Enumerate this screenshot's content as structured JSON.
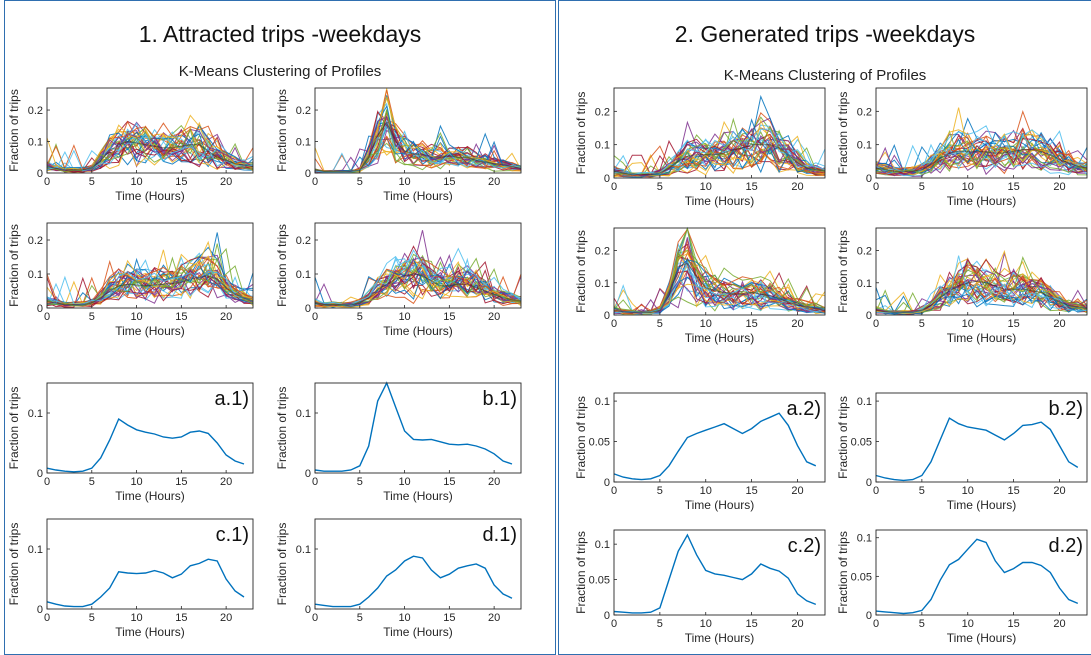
{
  "panels": [
    {
      "title": "1. Attracted trips -weekdays",
      "subtitle": "K-Means Clustering of Profiles"
    },
    {
      "title": "2. Generated trips -weekdays",
      "subtitle": "K-Means Clustering of Profiles"
    }
  ],
  "chart_data": [
    {
      "id": "p1-cluster-1",
      "type": "line",
      "xlabel": "Time (Hours)",
      "ylabel": "Fraction of trips",
      "xlim": [
        0,
        23
      ],
      "ylim": [
        0,
        0.27
      ],
      "xticks": [
        0,
        5,
        10,
        15,
        20
      ],
      "yticks": [
        0,
        0.1,
        0.2
      ],
      "many_profiles": true,
      "series": [
        {
          "values": [
            0.02,
            0.015,
            0.01,
            0.01,
            0.01,
            0.015,
            0.04,
            0.07,
            0.09,
            0.1,
            0.095,
            0.09,
            0.085,
            0.08,
            0.08,
            0.085,
            0.09,
            0.09,
            0.07,
            0.05,
            0.04,
            0.03,
            0.025,
            0.02
          ]
        }
      ]
    },
    {
      "id": "p1-cluster-2",
      "type": "line",
      "xlabel": "Time (Hours)",
      "ylabel": "Fraction of trips",
      "xlim": [
        0,
        23
      ],
      "ylim": [
        0,
        0.27
      ],
      "xticks": [
        0,
        5,
        10,
        15,
        20
      ],
      "yticks": [
        0,
        0.1,
        0.2
      ],
      "many_profiles": true,
      "series": [
        {
          "values": [
            0.01,
            0.005,
            0.005,
            0.005,
            0.005,
            0.01,
            0.05,
            0.12,
            0.16,
            0.1,
            0.07,
            0.06,
            0.06,
            0.05,
            0.05,
            0.055,
            0.05,
            0.05,
            0.04,
            0.035,
            0.03,
            0.025,
            0.02,
            0.015
          ]
        }
      ]
    },
    {
      "id": "p1-cluster-3",
      "type": "line",
      "xlabel": "Time (Hours)",
      "ylabel": "Fraction of trips",
      "xlim": [
        0,
        23
      ],
      "ylim": [
        0,
        0.25
      ],
      "xticks": [
        0,
        5,
        10,
        15,
        20
      ],
      "yticks": [
        0,
        0.1,
        0.2
      ],
      "many_profiles": true,
      "series": [
        {
          "values": [
            0.02,
            0.015,
            0.01,
            0.01,
            0.01,
            0.015,
            0.03,
            0.05,
            0.065,
            0.07,
            0.068,
            0.065,
            0.068,
            0.07,
            0.072,
            0.075,
            0.085,
            0.09,
            0.095,
            0.085,
            0.06,
            0.04,
            0.03,
            0.02
          ]
        }
      ]
    },
    {
      "id": "p1-cluster-4",
      "type": "line",
      "xlabel": "Time (Hours)",
      "ylabel": "Fraction of trips",
      "xlim": [
        0,
        23
      ],
      "ylim": [
        0,
        0.25
      ],
      "xticks": [
        0,
        5,
        10,
        15,
        20
      ],
      "yticks": [
        0,
        0.1,
        0.2
      ],
      "many_profiles": true,
      "series": [
        {
          "values": [
            0.015,
            0.01,
            0.01,
            0.01,
            0.01,
            0.015,
            0.03,
            0.055,
            0.07,
            0.085,
            0.095,
            0.1,
            0.095,
            0.08,
            0.065,
            0.065,
            0.07,
            0.07,
            0.06,
            0.05,
            0.04,
            0.03,
            0.025,
            0.02
          ]
        }
      ]
    },
    {
      "id": "p1-a",
      "type": "line",
      "xlabel": "Time (Hours)",
      "ylabel": "Fraction of  trips",
      "label": "a.1)",
      "xlim": [
        0,
        23
      ],
      "ylim": [
        0,
        0.15
      ],
      "xticks": [
        0,
        5,
        10,
        15,
        20
      ],
      "yticks": [
        0,
        0.1
      ],
      "series": [
        {
          "values": [
            0.008,
            0.005,
            0.003,
            0.002,
            0.003,
            0.008,
            0.025,
            0.055,
            0.09,
            0.08,
            0.072,
            0.068,
            0.065,
            0.06,
            0.058,
            0.06,
            0.068,
            0.07,
            0.066,
            0.05,
            0.03,
            0.02,
            0.015
          ]
        }
      ]
    },
    {
      "id": "p1-b",
      "type": "line",
      "xlabel": "Time (Hours)",
      "ylabel": "Fraction of  trips",
      "label": "b.1)",
      "xlim": [
        0,
        23
      ],
      "ylim": [
        0,
        0.15
      ],
      "xticks": [
        0,
        5,
        10,
        15,
        20
      ],
      "yticks": [
        0,
        0.1
      ],
      "series": [
        {
          "values": [
            0.005,
            0.003,
            0.003,
            0.003,
            0.005,
            0.012,
            0.045,
            0.12,
            0.15,
            0.11,
            0.07,
            0.056,
            0.055,
            0.056,
            0.052,
            0.048,
            0.047,
            0.048,
            0.045,
            0.04,
            0.032,
            0.02,
            0.015
          ]
        }
      ]
    },
    {
      "id": "p1-c",
      "type": "line",
      "xlabel": "Time (Hours)",
      "ylabel": "Fraction of  trips",
      "label": "c.1)",
      "xlim": [
        0,
        23
      ],
      "ylim": [
        0,
        0.15
      ],
      "xticks": [
        0,
        5,
        10,
        15,
        20
      ],
      "yticks": [
        0,
        0.1
      ],
      "series": [
        {
          "values": [
            0.012,
            0.008,
            0.005,
            0.004,
            0.004,
            0.008,
            0.02,
            0.035,
            0.062,
            0.06,
            0.059,
            0.06,
            0.064,
            0.06,
            0.052,
            0.058,
            0.072,
            0.076,
            0.083,
            0.08,
            0.05,
            0.03,
            0.02
          ]
        }
      ]
    },
    {
      "id": "p1-d",
      "type": "line",
      "xlabel": "Time (Hours)",
      "ylabel": "Fraction of  trips",
      "label": "d.1)",
      "xlim": [
        0,
        23
      ],
      "ylim": [
        0,
        0.15
      ],
      "xticks": [
        0,
        5,
        10,
        15,
        20
      ],
      "yticks": [
        0,
        0.1
      ],
      "series": [
        {
          "values": [
            0.008,
            0.006,
            0.004,
            0.004,
            0.004,
            0.008,
            0.02,
            0.035,
            0.055,
            0.065,
            0.08,
            0.088,
            0.085,
            0.065,
            0.052,
            0.058,
            0.068,
            0.072,
            0.075,
            0.068,
            0.04,
            0.025,
            0.018
          ]
        }
      ]
    },
    {
      "id": "p2-cluster-1",
      "type": "line",
      "xlabel": "Time (Hours)",
      "ylabel": "Fraction of trips",
      "xlim": [
        0,
        23
      ],
      "ylim": [
        0,
        0.27
      ],
      "xticks": [
        0,
        5,
        10,
        15,
        20
      ],
      "yticks": [
        0,
        0.1,
        0.2
      ],
      "many_profiles": true,
      "series": [
        {
          "values": [
            0.02,
            0.015,
            0.01,
            0.01,
            0.01,
            0.015,
            0.03,
            0.05,
            0.065,
            0.07,
            0.07,
            0.07,
            0.075,
            0.085,
            0.09,
            0.1,
            0.1,
            0.1,
            0.09,
            0.07,
            0.045,
            0.03,
            0.025,
            0.02
          ]
        }
      ]
    },
    {
      "id": "p2-cluster-2",
      "type": "line",
      "xlabel": "Time (Hours)",
      "ylabel": "Fraction of trips",
      "xlim": [
        0,
        23
      ],
      "ylim": [
        0,
        0.27
      ],
      "xticks": [
        0,
        5,
        10,
        15,
        20
      ],
      "yticks": [
        0,
        0.1,
        0.2
      ],
      "many_profiles": true,
      "series": [
        {
          "values": [
            0.03,
            0.025,
            0.02,
            0.02,
            0.02,
            0.025,
            0.04,
            0.06,
            0.075,
            0.08,
            0.08,
            0.08,
            0.078,
            0.075,
            0.075,
            0.08,
            0.085,
            0.085,
            0.08,
            0.07,
            0.055,
            0.045,
            0.035,
            0.03
          ]
        }
      ]
    },
    {
      "id": "p2-cluster-3",
      "type": "line",
      "xlabel": "Time (Hours)",
      "ylabel": "Fraction of trips",
      "xlim": [
        0,
        23
      ],
      "ylim": [
        0,
        0.27
      ],
      "xticks": [
        0,
        5,
        10,
        15,
        20
      ],
      "yticks": [
        0,
        0.1,
        0.2
      ],
      "many_profiles": true,
      "series": [
        {
          "values": [
            0.015,
            0.01,
            0.008,
            0.008,
            0.008,
            0.015,
            0.06,
            0.15,
            0.16,
            0.12,
            0.085,
            0.075,
            0.07,
            0.065,
            0.065,
            0.07,
            0.065,
            0.06,
            0.05,
            0.04,
            0.03,
            0.025,
            0.02,
            0.015
          ]
        }
      ]
    },
    {
      "id": "p2-cluster-4",
      "type": "line",
      "xlabel": "Time (Hours)",
      "ylabel": "Fraction of trips",
      "xlim": [
        0,
        23
      ],
      "ylim": [
        0,
        0.27
      ],
      "xticks": [
        0,
        5,
        10,
        15,
        20
      ],
      "yticks": [
        0,
        0.1,
        0.2
      ],
      "many_profiles": true,
      "series": [
        {
          "values": [
            0.015,
            0.01,
            0.008,
            0.008,
            0.008,
            0.015,
            0.03,
            0.055,
            0.075,
            0.09,
            0.1,
            0.105,
            0.1,
            0.09,
            0.08,
            0.08,
            0.08,
            0.075,
            0.07,
            0.055,
            0.04,
            0.03,
            0.025,
            0.02
          ]
        }
      ]
    },
    {
      "id": "p2-a",
      "type": "line",
      "xlabel": "Time (Hours)",
      "ylabel": "Fraction of trips",
      "label": "a.2)",
      "xlim": [
        0,
        23
      ],
      "ylim": [
        0,
        0.11
      ],
      "xticks": [
        0,
        5,
        10,
        15,
        20
      ],
      "yticks": [
        0,
        0.05,
        0.1
      ],
      "series": [
        {
          "values": [
            0.01,
            0.006,
            0.004,
            0.003,
            0.004,
            0.008,
            0.02,
            0.038,
            0.055,
            0.06,
            0.064,
            0.068,
            0.072,
            0.066,
            0.06,
            0.066,
            0.075,
            0.08,
            0.085,
            0.07,
            0.045,
            0.025,
            0.02
          ]
        }
      ]
    },
    {
      "id": "p2-b",
      "type": "line",
      "xlabel": "Time (Hours)",
      "ylabel": "Fraction of trips",
      "label": "b.2)",
      "xlim": [
        0,
        23
      ],
      "ylim": [
        0,
        0.11
      ],
      "xticks": [
        0,
        5,
        10,
        15,
        20
      ],
      "yticks": [
        0,
        0.05,
        0.1
      ],
      "series": [
        {
          "values": [
            0.008,
            0.005,
            0.003,
            0.002,
            0.003,
            0.008,
            0.025,
            0.052,
            0.079,
            0.072,
            0.068,
            0.066,
            0.064,
            0.058,
            0.052,
            0.06,
            0.07,
            0.071,
            0.074,
            0.065,
            0.045,
            0.025,
            0.018
          ]
        }
      ]
    },
    {
      "id": "p2-c",
      "type": "line",
      "xlabel": "Time (Hours)",
      "ylabel": "Fraction of trips",
      "label": "c.2)",
      "xlim": [
        0,
        23
      ],
      "ylim": [
        0,
        0.12
      ],
      "xticks": [
        0,
        5,
        10,
        15,
        20
      ],
      "yticks": [
        0,
        0.05,
        0.1
      ],
      "series": [
        {
          "values": [
            0.005,
            0.004,
            0.003,
            0.003,
            0.004,
            0.01,
            0.05,
            0.09,
            0.113,
            0.085,
            0.063,
            0.058,
            0.056,
            0.053,
            0.05,
            0.058,
            0.072,
            0.066,
            0.062,
            0.052,
            0.03,
            0.02,
            0.015
          ]
        }
      ]
    },
    {
      "id": "p2-d",
      "type": "line",
      "xlabel": "Time (Hours)",
      "ylabel": "Fraction of trips",
      "label": "d.2)",
      "xlim": [
        0,
        23
      ],
      "ylim": [
        0,
        0.11
      ],
      "xticks": [
        0,
        5,
        10,
        15,
        20
      ],
      "yticks": [
        0,
        0.05,
        0.1
      ],
      "series": [
        {
          "values": [
            0.005,
            0.004,
            0.003,
            0.002,
            0.003,
            0.006,
            0.02,
            0.045,
            0.065,
            0.072,
            0.085,
            0.098,
            0.094,
            0.07,
            0.055,
            0.06,
            0.068,
            0.068,
            0.064,
            0.055,
            0.035,
            0.02,
            0.015
          ]
        }
      ]
    }
  ]
}
